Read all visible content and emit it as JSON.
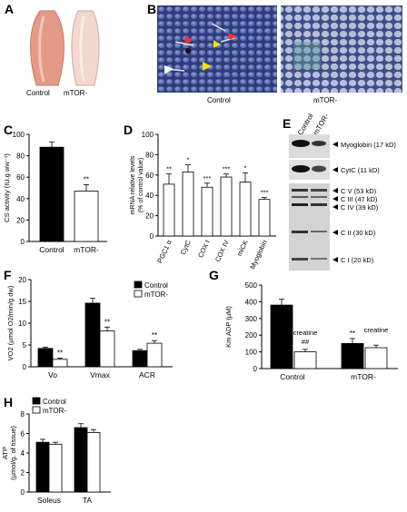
{
  "panels": {
    "A": {
      "letter": "A",
      "labels": [
        "Control",
        "mTOR-"
      ],
      "tissue_color": "#e79a86"
    },
    "B": {
      "letter": "B",
      "labels": [
        "Control",
        "mTOR-"
      ],
      "stain_color": "#3b4a8a"
    },
    "E": {
      "letter": "E",
      "lane_labels": [
        "Control",
        "mTOR-"
      ],
      "bands": [
        "Myoglobin (17 kD)",
        "CytC (11 kD)",
        "C V (53 kD)",
        "C III (47 kD)",
        "C IV (39 kD)",
        "C II (30 kD)",
        "C I (20 kD)"
      ]
    }
  },
  "chart_data": [
    {
      "id": "C",
      "letter": "C",
      "type": "bar",
      "categories": [
        "Control",
        "mTOR-"
      ],
      "values": [
        88,
        47
      ],
      "errors": [
        5,
        6
      ],
      "ylabel": "CS activity (IU.g ww⁻¹)",
      "ylim": [
        0,
        100
      ],
      "yticks": [
        0,
        20,
        40,
        60,
        80,
        100
      ],
      "annotations": [
        "",
        "**"
      ],
      "fills": [
        "#000000",
        "#ffffff"
      ]
    },
    {
      "id": "D",
      "letter": "D",
      "type": "bar",
      "categories": [
        "PGC1 α",
        "CytC",
        "COX I",
        "COX IV",
        "miCK",
        "Myoglobin"
      ],
      "values": [
        51,
        63,
        48,
        58,
        53,
        36
      ],
      "errors": [
        10,
        7,
        4,
        3,
        9,
        2
      ],
      "ylabel": "mRNA relative levels (% of control value)",
      "ylim": [
        0,
        100
      ],
      "yticks": [
        0,
        20,
        40,
        60,
        80,
        100
      ],
      "annotations": [
        "**",
        "*",
        "***",
        "***",
        "*",
        "***"
      ]
    },
    {
      "id": "F",
      "letter": "F",
      "type": "bar",
      "categories": [
        "Vo",
        "Vmax",
        "ACR"
      ],
      "series": [
        {
          "name": "Control",
          "values": [
            4.2,
            14.6,
            3.7
          ],
          "errors": [
            0.3,
            1.1,
            0.3
          ],
          "color": "#000000"
        },
        {
          "name": "mTOR-",
          "values": [
            1.7,
            8.2,
            5.4
          ],
          "errors": [
            0.3,
            0.9,
            0.6
          ],
          "color": "#ffffff"
        }
      ],
      "ylabel": "VO2 (µmol O2/min/g dw)",
      "ylim": [
        0,
        20
      ],
      "yticks": [
        0,
        5,
        10,
        15,
        20
      ],
      "annotations": [
        "**",
        "**",
        "**"
      ]
    },
    {
      "id": "G",
      "letter": "G",
      "type": "bar",
      "categories": [
        "Control",
        "mTOR-"
      ],
      "series": [
        {
          "values": [
            380,
            150
          ],
          "errors": [
            35,
            30
          ],
          "color": "#000000"
        },
        {
          "values": [
            100,
            125
          ],
          "errors": [
            15,
            15
          ],
          "color": "#ffffff"
        }
      ],
      "ylabel": "Km ADP (µM)",
      "ylim": [
        0,
        500
      ],
      "yticks": [
        0,
        100,
        200,
        300,
        400,
        500
      ],
      "annotations": [
        "creatine",
        "##",
        "**",
        "creatine"
      ]
    },
    {
      "id": "H",
      "letter": "H",
      "type": "bar",
      "categories": [
        "Soleus",
        "TA"
      ],
      "series": [
        {
          "name": "Control",
          "values": [
            5.1,
            6.6
          ],
          "errors": [
            0.3,
            0.4
          ],
          "color": "#000000"
        },
        {
          "name": "mTOR-",
          "values": [
            4.9,
            6.1
          ],
          "errors": [
            0.2,
            0.3
          ],
          "color": "#ffffff"
        }
      ],
      "ylabel": "ATP (µmol/g of tissue)",
      "ylim": [
        0,
        8
      ],
      "yticks": [
        0,
        2,
        4,
        6,
        8
      ]
    }
  ]
}
